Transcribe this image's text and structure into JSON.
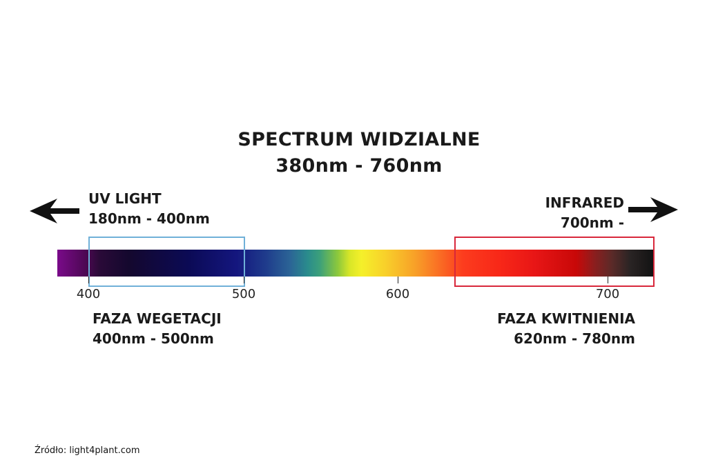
{
  "title": {
    "line1": "SPECTRUM WIDZIALNE",
    "line2": "380nm - 760nm"
  },
  "uv": {
    "name": "UV LIGHT",
    "range": "180nm - 400nm",
    "arrow_icon": "arrow-left-icon"
  },
  "infrared": {
    "name": "INFRARED",
    "range": "700nm -",
    "arrow_icon": "arrow-right-icon"
  },
  "spectrum": {
    "ticks": [
      {
        "value": "400"
      },
      {
        "value": "500"
      },
      {
        "value": "600"
      },
      {
        "value": "700"
      }
    ]
  },
  "phases": {
    "vegetation": {
      "name": "FAZA WEGETACJI",
      "range": "400nm - 500nm",
      "box_color": "#6fb0d8"
    },
    "flowering": {
      "name": "FAZA KWITNIENIA",
      "range": "620nm - 780nm",
      "box_color": "#d8263a"
    }
  },
  "source": "Źródło: light4plant.com"
}
